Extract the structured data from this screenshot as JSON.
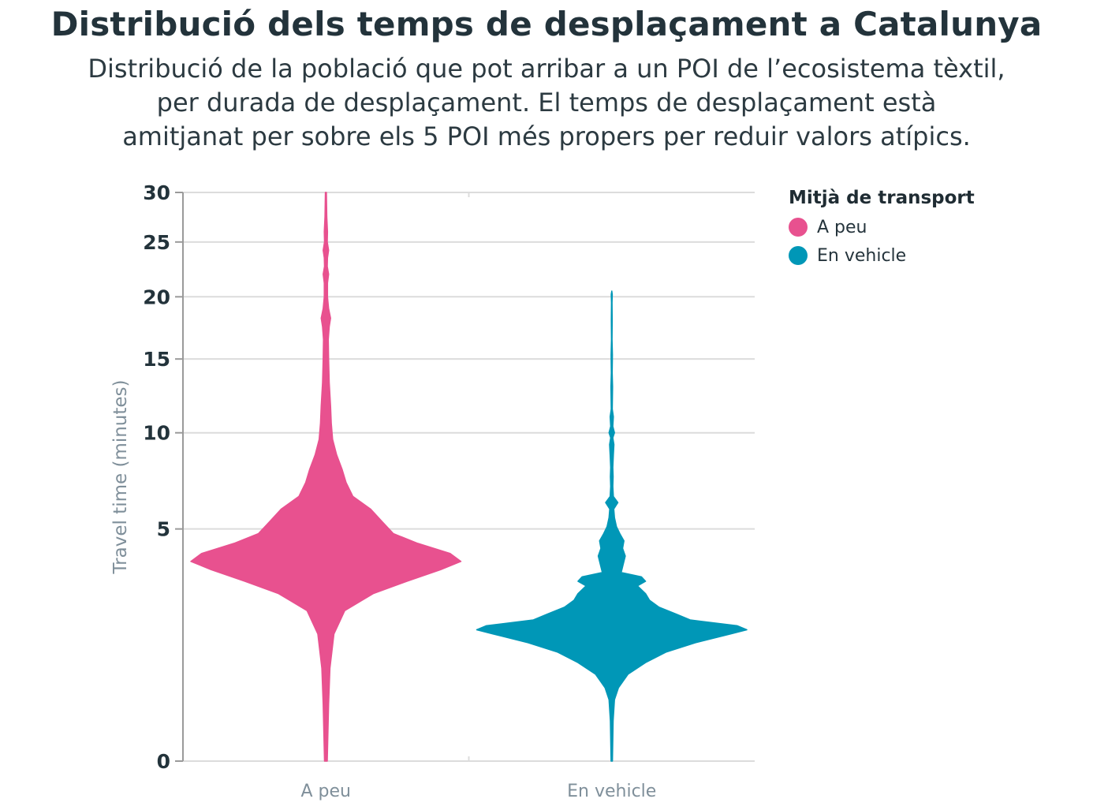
{
  "title": "Distribució dels temps de desplaçament a Catalunya",
  "subtitle_lines": [
    "Distribució de la població que pot arribar a un POI de l’ecosistema tèxtil,",
    "per durada de desplaçament. El temps de desplaçament està",
    "amitjanat per sobre els 5 POI més propers per reduir valors atípics."
  ],
  "legend": {
    "title": "Mitjà de transport",
    "items": [
      {
        "label": "A peu",
        "color": "#e8518f"
      },
      {
        "label": "En vehicle",
        "color": "#0097b7"
      }
    ]
  },
  "chart_data": {
    "type": "violin",
    "ylabel": "Travel time (minutes)",
    "xlabel": "",
    "y_scale": "sqrt",
    "ylim": [
      0,
      30
    ],
    "y_ticks": [
      0,
      5,
      10,
      15,
      20,
      25,
      30
    ],
    "categories": [
      "A peu",
      "En vehicle"
    ],
    "series": [
      {
        "name": "A peu",
        "color": "#e8518f",
        "density_profile": [
          [
            0,
            0.01
          ],
          [
            0.3,
            0.02
          ],
          [
            0.8,
            0.03
          ],
          [
            1.5,
            0.06
          ],
          [
            2.1,
            0.14
          ],
          [
            2.6,
            0.35
          ],
          [
            3.0,
            0.6
          ],
          [
            3.4,
            0.85
          ],
          [
            3.7,
            1.0
          ],
          [
            4.0,
            0.92
          ],
          [
            4.4,
            0.68
          ],
          [
            4.8,
            0.5
          ],
          [
            5.3,
            0.42
          ],
          [
            5.9,
            0.33
          ],
          [
            6.5,
            0.2
          ],
          [
            7.2,
            0.15
          ],
          [
            7.9,
            0.12
          ],
          [
            8.7,
            0.08
          ],
          [
            9.6,
            0.05
          ],
          [
            10.6,
            0.04
          ],
          [
            11.7,
            0.035
          ],
          [
            13.3,
            0.025
          ],
          [
            15.0,
            0.02
          ],
          [
            16.5,
            0.018
          ],
          [
            17.5,
            0.025
          ],
          [
            18.2,
            0.035
          ],
          [
            19.0,
            0.02
          ],
          [
            20.0,
            0.012
          ],
          [
            21.2,
            0.012
          ],
          [
            22.0,
            0.02
          ],
          [
            22.7,
            0.01
          ],
          [
            23.5,
            0.012
          ],
          [
            24.2,
            0.02
          ],
          [
            25.0,
            0.01
          ],
          [
            26.0,
            0.012
          ],
          [
            27.5,
            0.007
          ],
          [
            29.0,
            0.005
          ],
          [
            30.0,
            0.004
          ]
        ]
      },
      {
        "name": "En vehicle",
        "color": "#0097b7",
        "density_profile": [
          [
            0,
            0.005
          ],
          [
            0.15,
            0.01
          ],
          [
            0.35,
            0.02
          ],
          [
            0.5,
            0.05
          ],
          [
            0.7,
            0.12
          ],
          [
            0.9,
            0.25
          ],
          [
            1.1,
            0.4
          ],
          [
            1.3,
            0.62
          ],
          [
            1.5,
            0.88
          ],
          [
            1.6,
            1.0
          ],
          [
            1.7,
            0.93
          ],
          [
            1.85,
            0.58
          ],
          [
            2.0,
            0.48
          ],
          [
            2.2,
            0.35
          ],
          [
            2.4,
            0.28
          ],
          [
            2.6,
            0.25
          ],
          [
            2.85,
            0.19
          ],
          [
            3.0,
            0.25
          ],
          [
            3.15,
            0.22
          ],
          [
            3.3,
            0.07
          ],
          [
            3.5,
            0.08
          ],
          [
            3.9,
            0.1
          ],
          [
            4.2,
            0.08
          ],
          [
            4.5,
            0.09
          ],
          [
            4.8,
            0.06
          ],
          [
            5.1,
            0.035
          ],
          [
            5.5,
            0.02
          ],
          [
            5.9,
            0.015
          ],
          [
            6.2,
            0.045
          ],
          [
            6.5,
            0.012
          ],
          [
            7.0,
            0.008
          ],
          [
            7.5,
            0.01
          ],
          [
            8.0,
            0.008
          ],
          [
            8.7,
            0.012
          ],
          [
            9.3,
            0.016
          ],
          [
            9.7,
            0.008
          ],
          [
            10.0,
            0.02
          ],
          [
            10.4,
            0.008
          ],
          [
            11.0,
            0.012
          ],
          [
            11.5,
            0.004
          ],
          [
            13.0,
            0.006
          ],
          [
            14.0,
            0.003
          ],
          [
            15.3,
            0.005
          ],
          [
            16.5,
            0.002
          ],
          [
            18.0,
            0.003
          ],
          [
            19.5,
            0.002
          ],
          [
            20.2,
            0.004
          ],
          [
            20.5,
            0.0
          ]
        ]
      }
    ]
  }
}
